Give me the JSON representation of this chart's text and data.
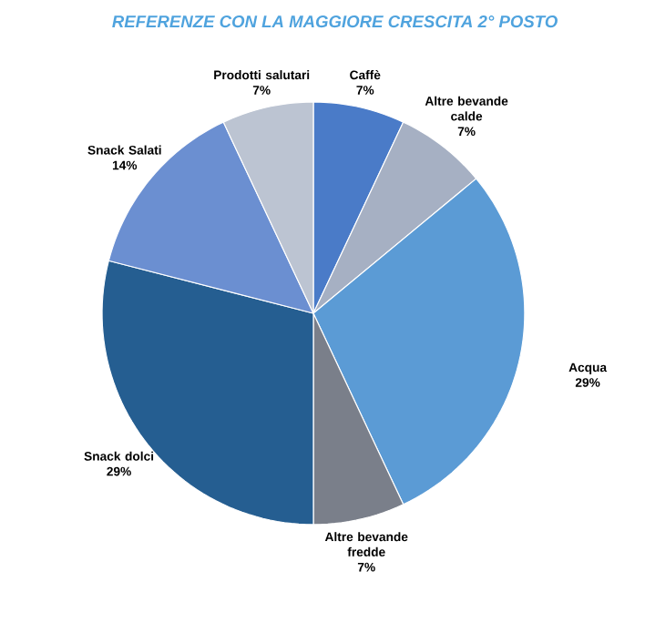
{
  "chart_data": {
    "type": "pie",
    "title": "REFERENZE CON LA MAGGIORE CRESCITA 2° POSTO",
    "categories": [
      "Caffè",
      "Altre bevande calde",
      "Acqua",
      "Altre bevande fredde",
      "Snack dolci",
      "Snack Salati",
      "Prodotti salutari"
    ],
    "values": [
      7,
      7,
      29,
      7,
      29,
      14,
      7
    ],
    "value_labels": [
      "7%",
      "7%",
      "29%",
      "7%",
      "29%",
      "14%",
      "7%"
    ],
    "colors": [
      "#4a7bc8",
      "#a6b0c3",
      "#5b9bd5",
      "#7a7f8a",
      "#255e91",
      "#6b8fd1",
      "#bcc4d2"
    ]
  }
}
